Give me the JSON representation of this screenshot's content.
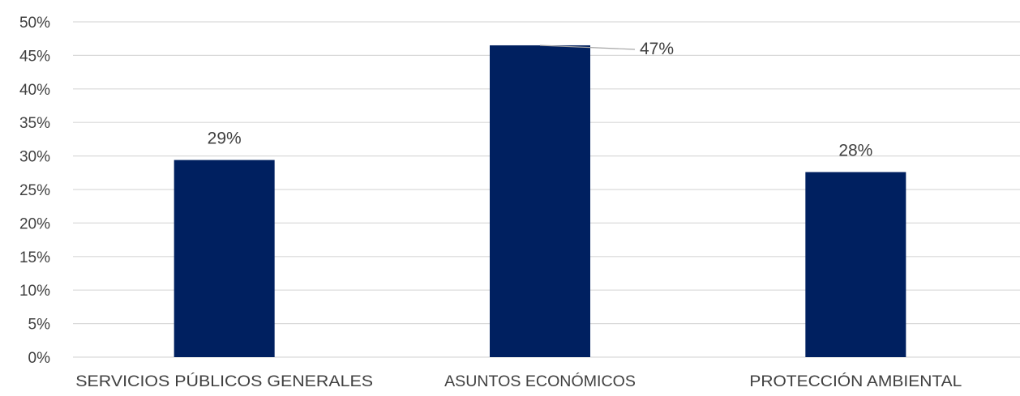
{
  "chart_data": {
    "type": "bar",
    "categories": [
      "SERVICIOS PÚBLICOS GENERALES",
      "ASUNTOS ECONÓMICOS",
      "PROTECCIÓN AMBIENTAL"
    ],
    "values": [
      29.4,
      46.5,
      27.6
    ],
    "data_labels": [
      "29%",
      "47%",
      "28%"
    ],
    "ylim": [
      0,
      50
    ],
    "y_ticks": [
      "0%",
      "5%",
      "10%",
      "15%",
      "20%",
      "25%",
      "30%",
      "35%",
      "40%",
      "45%",
      "50%"
    ],
    "grid": true,
    "bar_color": "#002060",
    "grid_color": "#d9d9d9"
  }
}
